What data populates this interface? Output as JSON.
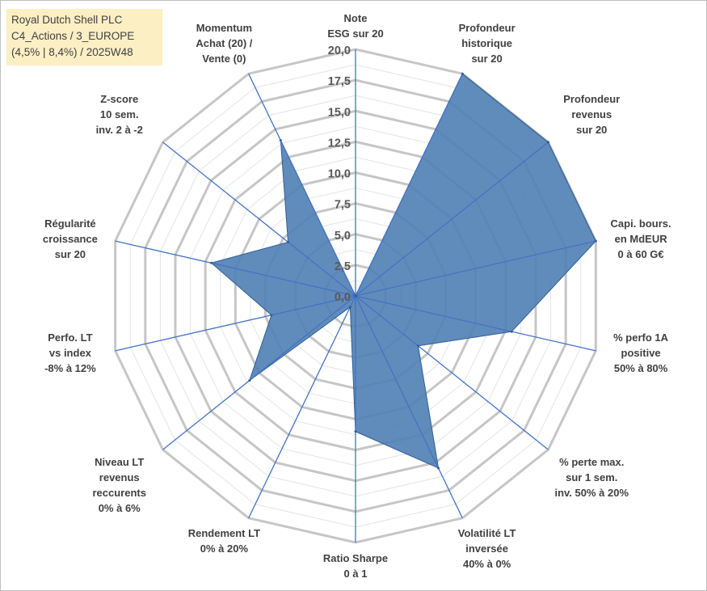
{
  "colors": {
    "grid": "#c6c6c6",
    "spoke": "#4472c4",
    "area_fill": "#4f7fb4",
    "area_stroke": "#2f5f96",
    "title_bg": "#fcefc4"
  },
  "title_box": {
    "line1": "Royal Dutch Shell PLC",
    "line2": "C4_Actions / 3_EUROPE",
    "line3": "(4,5% | 8,4%) / 2025W48"
  },
  "chart_data": {
    "type": "radar",
    "title": "Royal Dutch Shell PLC",
    "rlim": [
      0,
      20
    ],
    "tick_values": [
      0,
      2.5,
      5,
      7.5,
      10,
      12.5,
      15,
      17.5,
      20
    ],
    "tick_labels": [
      "0,0",
      "2,5",
      "5,0",
      "7,5",
      "10,0",
      "12,5",
      "15,0",
      "17,5",
      "20,0"
    ],
    "axes": [
      {
        "label": [
          "Note",
          "ESG sur 20"
        ],
        "value": 0
      },
      {
        "label": [
          "Profondeur",
          "historique",
          "sur 20"
        ],
        "value": 20
      },
      {
        "label": [
          "Profondeur",
          "revenus",
          "sur 20"
        ],
        "value": 20
      },
      {
        "label": [
          "Capi. bours.",
          "en MdEUR",
          "0 à 60 G€"
        ],
        "value": 20
      },
      {
        "label": [
          "% perfo 1A",
          "positive",
          "50% à 80%"
        ],
        "value": 13
      },
      {
        "label": [
          "% perte max.",
          "sur 1 sem.",
          "inv. 50% à 20%"
        ],
        "value": 6.5
      },
      {
        "label": [
          "Volatilité LT",
          "inversée",
          "40% à 0%"
        ],
        "value": 15.5
      },
      {
        "label": [
          "Ratio Sharpe",
          "0 à 1"
        ],
        "value": 11
      },
      {
        "label": [
          "Rendement LT",
          "0% à 20%"
        ],
        "value": 1
      },
      {
        "label": [
          "Niveau LT",
          "revenus",
          "reccurents",
          "0% à 6%"
        ],
        "value": 11
      },
      {
        "label": [
          "Perfo. LT",
          "vs index",
          "-8% à 12%"
        ],
        "value": 7
      },
      {
        "label": [
          "Régularité",
          "croissance",
          "sur 20"
        ],
        "value": 12
      },
      {
        "label": [
          "Z-score",
          "10 sem.",
          "inv. 2 à -2"
        ],
        "value": 7
      },
      {
        "label": [
          "Momentum",
          "Achat (20) /",
          "Vente (0)"
        ],
        "value": 14
      }
    ]
  }
}
